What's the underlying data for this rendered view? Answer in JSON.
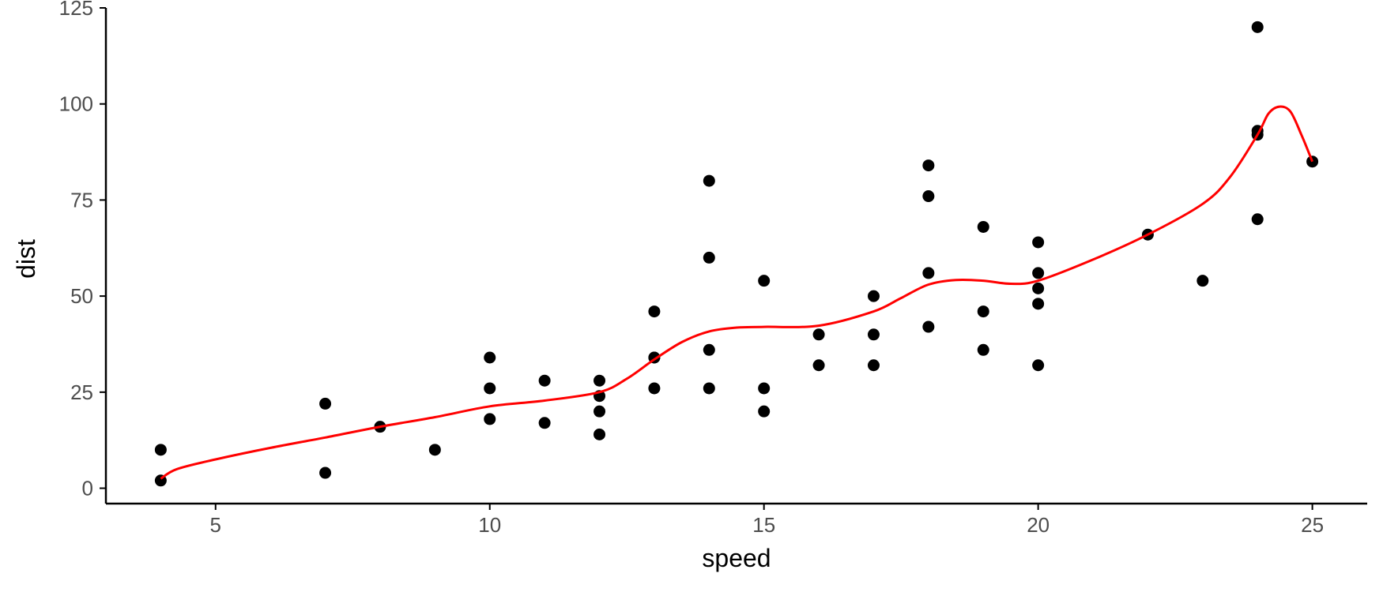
{
  "chart_data": {
    "type": "scatter",
    "title": "",
    "xlabel": "speed",
    "ylabel": "dist",
    "xlim": [
      3,
      26
    ],
    "ylim": [
      -4,
      125
    ],
    "x_ticks": [
      5,
      10,
      15,
      20,
      25
    ],
    "y_ticks": [
      0,
      25,
      50,
      75,
      100,
      125
    ],
    "grid": false,
    "legend": "none",
    "point_color": "#000000",
    "smooth_color": "#ff0000",
    "points": [
      {
        "x": 4,
        "y": 2
      },
      {
        "x": 4,
        "y": 10
      },
      {
        "x": 7,
        "y": 4
      },
      {
        "x": 7,
        "y": 22
      },
      {
        "x": 8,
        "y": 16
      },
      {
        "x": 9,
        "y": 10
      },
      {
        "x": 10,
        "y": 18
      },
      {
        "x": 10,
        "y": 26
      },
      {
        "x": 10,
        "y": 34
      },
      {
        "x": 11,
        "y": 17
      },
      {
        "x": 11,
        "y": 28
      },
      {
        "x": 12,
        "y": 14
      },
      {
        "x": 12,
        "y": 20
      },
      {
        "x": 12,
        "y": 24
      },
      {
        "x": 12,
        "y": 28
      },
      {
        "x": 13,
        "y": 26
      },
      {
        "x": 13,
        "y": 34
      },
      {
        "x": 13,
        "y": 34
      },
      {
        "x": 13,
        "y": 46
      },
      {
        "x": 14,
        "y": 26
      },
      {
        "x": 14,
        "y": 36
      },
      {
        "x": 14,
        "y": 60
      },
      {
        "x": 14,
        "y": 80
      },
      {
        "x": 15,
        "y": 20
      },
      {
        "x": 15,
        "y": 26
      },
      {
        "x": 15,
        "y": 54
      },
      {
        "x": 16,
        "y": 32
      },
      {
        "x": 16,
        "y": 40
      },
      {
        "x": 17,
        "y": 32
      },
      {
        "x": 17,
        "y": 40
      },
      {
        "x": 17,
        "y": 50
      },
      {
        "x": 18,
        "y": 42
      },
      {
        "x": 18,
        "y": 56
      },
      {
        "x": 18,
        "y": 76
      },
      {
        "x": 18,
        "y": 84
      },
      {
        "x": 19,
        "y": 36
      },
      {
        "x": 19,
        "y": 46
      },
      {
        "x": 19,
        "y": 68
      },
      {
        "x": 20,
        "y": 32
      },
      {
        "x": 20,
        "y": 48
      },
      {
        "x": 20,
        "y": 52
      },
      {
        "x": 20,
        "y": 56
      },
      {
        "x": 20,
        "y": 64
      },
      {
        "x": 22,
        "y": 66
      },
      {
        "x": 23,
        "y": 54
      },
      {
        "x": 24,
        "y": 70
      },
      {
        "x": 24,
        "y": 92
      },
      {
        "x": 24,
        "y": 93
      },
      {
        "x": 24,
        "y": 120
      },
      {
        "x": 25,
        "y": 85
      }
    ],
    "smooth_line": [
      {
        "x": 4,
        "y": 2.5
      },
      {
        "x": 4.3,
        "y": 5
      },
      {
        "x": 5,
        "y": 7.5
      },
      {
        "x": 6,
        "y": 10.5
      },
      {
        "x": 7,
        "y": 13.2
      },
      {
        "x": 8,
        "y": 16
      },
      {
        "x": 9,
        "y": 18.5
      },
      {
        "x": 10,
        "y": 21.3
      },
      {
        "x": 11,
        "y": 22.8
      },
      {
        "x": 12,
        "y": 25
      },
      {
        "x": 12.5,
        "y": 28.5
      },
      {
        "x": 13,
        "y": 33.5
      },
      {
        "x": 13.5,
        "y": 38
      },
      {
        "x": 14,
        "y": 40.8
      },
      {
        "x": 14.5,
        "y": 41.8
      },
      {
        "x": 15,
        "y": 42
      },
      {
        "x": 16,
        "y": 42.3
      },
      {
        "x": 17,
        "y": 46
      },
      {
        "x": 17.5,
        "y": 49.5
      },
      {
        "x": 18,
        "y": 53
      },
      {
        "x": 18.5,
        "y": 54.2
      },
      {
        "x": 19,
        "y": 54
      },
      {
        "x": 19.5,
        "y": 53.2
      },
      {
        "x": 20,
        "y": 54
      },
      {
        "x": 21,
        "y": 59.5
      },
      {
        "x": 22,
        "y": 66
      },
      {
        "x": 23,
        "y": 74
      },
      {
        "x": 23.5,
        "y": 81
      },
      {
        "x": 24,
        "y": 92
      },
      {
        "x": 24.2,
        "y": 97.5
      },
      {
        "x": 24.4,
        "y": 99.3
      },
      {
        "x": 24.6,
        "y": 98
      },
      {
        "x": 24.8,
        "y": 92
      },
      {
        "x": 25,
        "y": 85
      }
    ]
  }
}
